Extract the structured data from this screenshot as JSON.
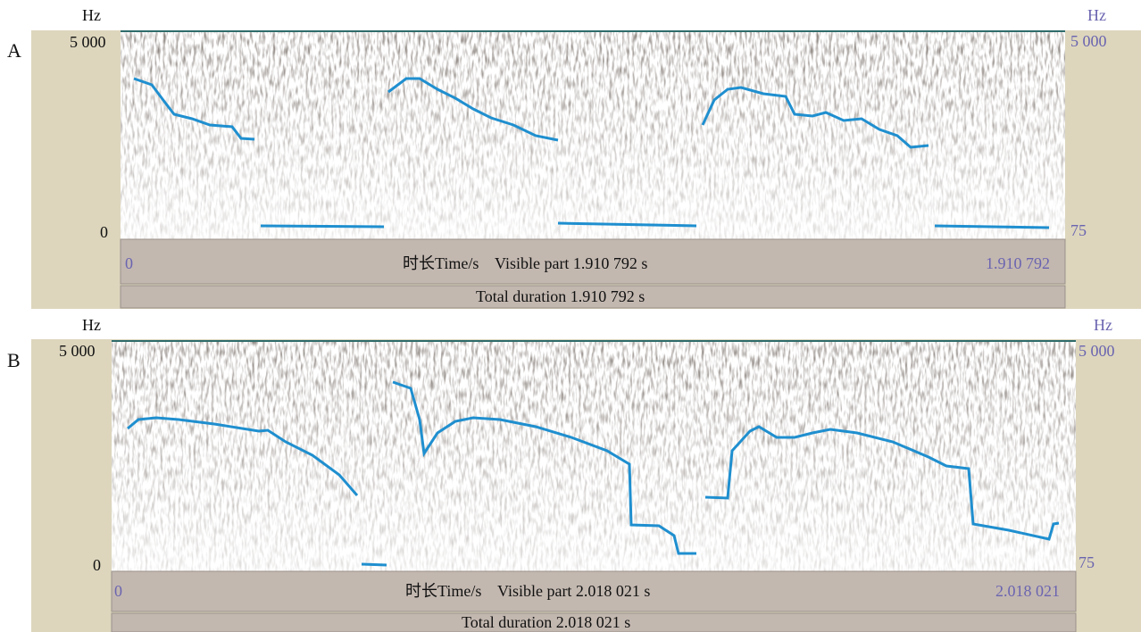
{
  "panels": [
    {
      "label": "A",
      "left_axis": {
        "unit": "Hz",
        "top": "5 000",
        "bottom": "0"
      },
      "right_axis": {
        "unit": "Hz",
        "top": "5 000",
        "bottom": "75"
      },
      "time_bar": {
        "start": "0",
        "caption": "时长Time/s    Visible part 1.910 792 s",
        "end": "1.910 792"
      },
      "total_bar": "Total duration 1.910 792 s"
    },
    {
      "label": "B",
      "left_axis": {
        "unit": "Hz",
        "top": "5 000",
        "bottom": "0"
      },
      "right_axis": {
        "unit": "Hz",
        "top": "5 000",
        "bottom": "75"
      },
      "time_bar": {
        "start": "0",
        "caption": "时长Time/s    Visible part 2.018 021 s",
        "end": "2.018 021"
      },
      "total_bar": "Total duration 2.018 021 s"
    }
  ]
}
